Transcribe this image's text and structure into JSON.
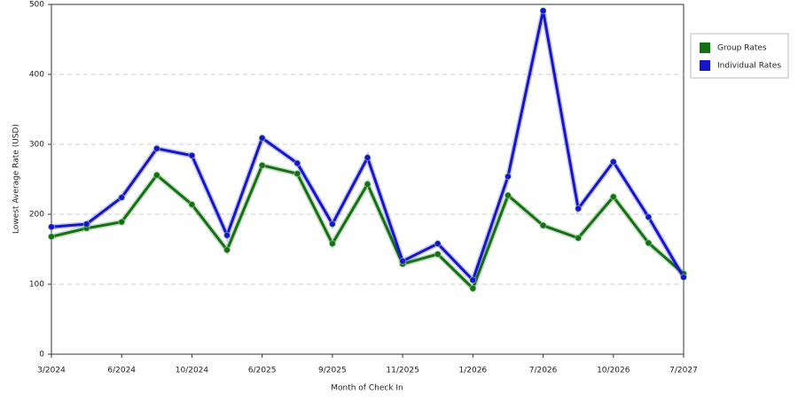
{
  "chart_data": {
    "type": "line",
    "x_label": "Month of Check In",
    "y_label": "Lowest Average Rate (USD)",
    "categories": [
      "3/2024",
      null,
      "6/2024",
      null,
      "10/2024",
      null,
      "6/2025",
      null,
      "9/2025",
      null,
      "11/2025",
      null,
      "1/2026",
      null,
      "7/2026",
      null,
      "10/2026",
      null,
      "7/2027"
    ],
    "series": [
      {
        "name": "Group Rates",
        "color": "#157015",
        "values": [
          168,
          180,
          189,
          256,
          214,
          149,
          270,
          258,
          158,
          243,
          129,
          143,
          94,
          227,
          184,
          166,
          225,
          159,
          115
        ]
      },
      {
        "name": "Individual Rates",
        "color": "#1616c8",
        "values": [
          182,
          186,
          224,
          294,
          284,
          170,
          309,
          273,
          186,
          281,
          133,
          158,
          106,
          254,
          491,
          208,
          275,
          196,
          110
        ]
      }
    ],
    "ylim": [
      0,
      500
    ],
    "yticks": [
      0,
      100,
      200,
      300,
      400,
      500
    ],
    "grid": true,
    "legend": "right"
  }
}
